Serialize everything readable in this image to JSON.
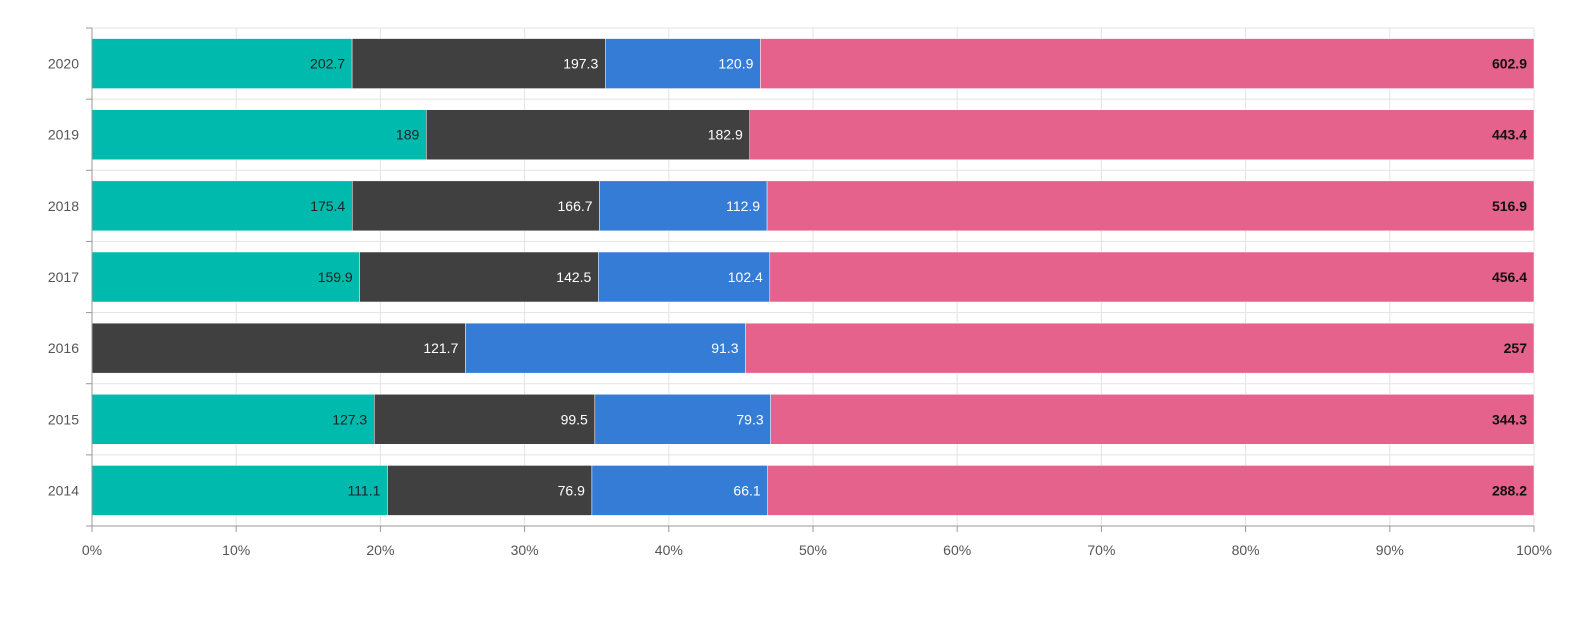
{
  "chart_data": {
    "type": "bar",
    "orientation": "horizontal",
    "stacked": "percent",
    "title": "",
    "xlabel": "",
    "ylabel": "",
    "xlim": [
      0,
      100
    ],
    "x_tick_labels": [
      "0%",
      "10%",
      "20%",
      "30%",
      "40%",
      "50%",
      "60%",
      "70%",
      "80%",
      "90%",
      "100%"
    ],
    "grid": true,
    "legend": "none",
    "categories": [
      "2020",
      "2019",
      "2018",
      "2017",
      "2016",
      "2015",
      "2014"
    ],
    "series": [
      {
        "color": "#00BAAD",
        "label_color": "#222222",
        "values": [
          202.7,
          189,
          175.4,
          159.9,
          null,
          127.3,
          111.1
        ]
      },
      {
        "color": "#404040",
        "label_color": "#ffffff",
        "values": [
          197.3,
          182.9,
          166.7,
          142.5,
          121.7,
          99.5,
          76.9
        ]
      },
      {
        "color": "#357CD6",
        "label_color": "#ffffff",
        "values": [
          120.9,
          null,
          112.9,
          102.4,
          91.3,
          79.3,
          66.1
        ]
      }
    ],
    "totals": {
      "color": "#E5628D",
      "label_color": "#111111",
      "values": [
        602.9,
        443.4,
        516.9,
        456.4,
        257,
        344.3,
        288.2
      ]
    }
  }
}
